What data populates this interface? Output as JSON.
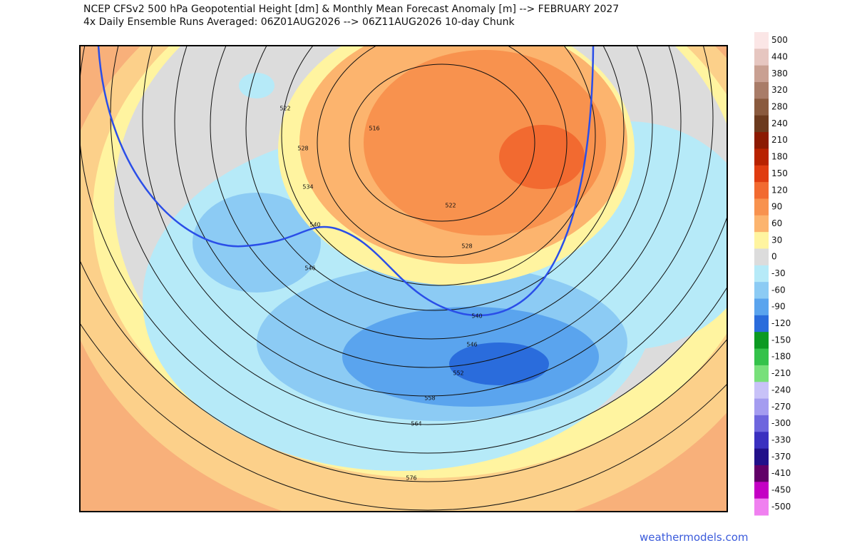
{
  "header": {
    "title": "NCEP CFSv2 500 hPa Geopotential Height [dm] & Monthly Mean Forecast Anomaly [m] --> FEBRUARY 2027",
    "subtitle": "4x Daily Ensemble Runs Averaged: 06Z01AUG2026 --> 06Z11AUG2026 10-day Chunk"
  },
  "contour_labels": [
    "522",
    "528",
    "534",
    "540",
    "546",
    "516",
    "522",
    "528",
    "540",
    "546",
    "552",
    "558",
    "564",
    "576"
  ],
  "colorbar": {
    "labels": [
      "500",
      "440",
      "380",
      "320",
      "280",
      "240",
      "210",
      "180",
      "150",
      "120",
      "90",
      "60",
      "30",
      "0",
      "-30",
      "-60",
      "-90",
      "-120",
      "-150",
      "-180",
      "-210",
      "-240",
      "-270",
      "-300",
      "-330",
      "-370",
      "-410",
      "-450",
      "-500"
    ],
    "colors": [
      "#fbe6e6",
      "#e6c6c0",
      "#c9a092",
      "#a97c68",
      "#8a5a3e",
      "#6c3a1e",
      "#8c1a02",
      "#b82200",
      "#e03c10",
      "#f26a30",
      "#f8924e",
      "#fcb46e",
      "#fff4a0",
      "#dcdcdc",
      "#b6eaf8",
      "#8ccbf4",
      "#5aa4ee",
      "#2a6cdc",
      "#0c9a22",
      "#34c24a",
      "#78e07a",
      "#c8c2f8",
      "#a49cf0",
      "#6e66de",
      "#3a30c0",
      "#22108a",
      "#620068",
      "#c400c4",
      "#f080f0"
    ]
  },
  "watermark": "weathermodels.com"
}
